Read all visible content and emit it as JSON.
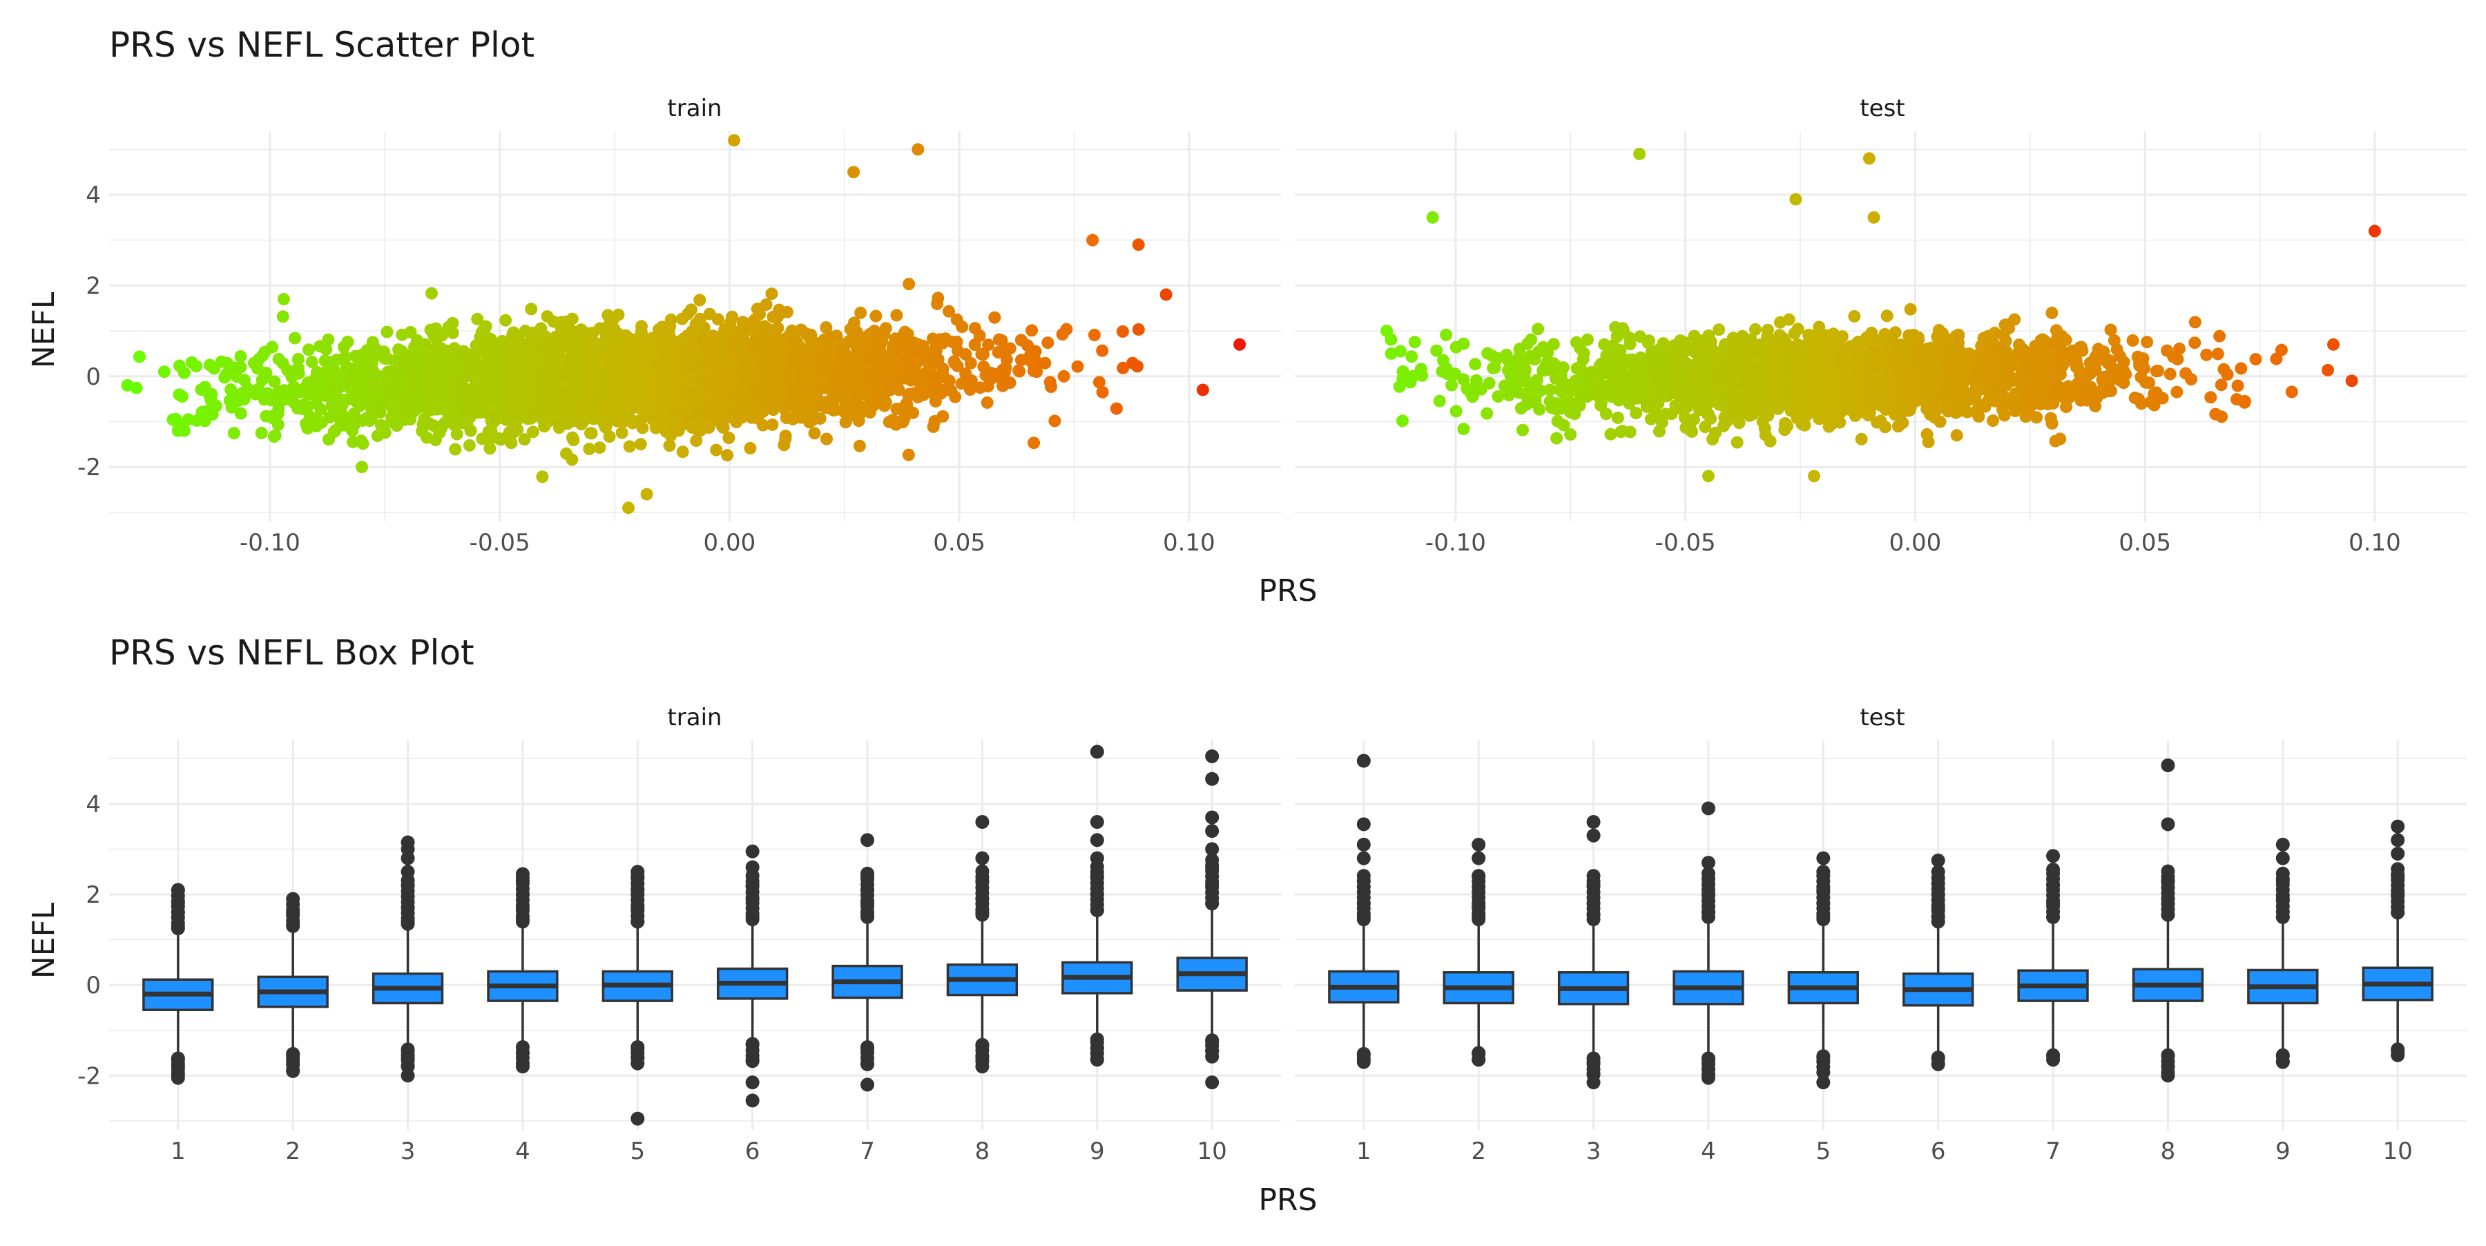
{
  "colors": {
    "grid": "#ebebeb",
    "text": "#4d4d4d",
    "title": "#1a1a1a",
    "box_fill": "#1e90ff",
    "box_line": "#333333",
    "point_low": "#66ff00",
    "point_mid": "#c8b400",
    "point_high": "#ee6a00",
    "point_max": "#ee0000"
  },
  "scatter": {
    "title": "PRS vs NEFL Scatter Plot",
    "xlabel": "PRS",
    "ylabel": "NEFL",
    "facets": [
      "train",
      "test"
    ]
  },
  "box": {
    "title": "PRS vs NEFL Box Plot",
    "xlabel": "PRS",
    "ylabel": "NEFL",
    "facets": [
      "train",
      "test"
    ]
  },
  "chart_data": [
    {
      "type": "scatter",
      "title": "PRS vs NEFL Scatter Plot",
      "xlabel": "PRS",
      "ylabel": "NEFL",
      "facets": [
        "train",
        "test"
      ],
      "xlim": [
        -0.135,
        0.12
      ],
      "ylim": [
        -3.2,
        5.4
      ],
      "x_ticks": [
        -0.1,
        -0.05,
        0.0,
        0.05,
        0.1
      ],
      "x_tick_labels": [
        "-0.10",
        "-0.05",
        "0.00",
        "0.05",
        "0.10"
      ],
      "y_ticks": [
        -2,
        0,
        2,
        4
      ],
      "y_tick_labels": [
        "-2",
        "0",
        "2",
        "4"
      ],
      "grid": true,
      "color_by": "PRS",
      "color_scale": [
        "#66ff00",
        "#c8b400",
        "#ee6a00",
        "#ee0000"
      ],
      "panels": [
        {
          "facet": "train",
          "x_range": [
            -0.13,
            0.11
          ],
          "core_cloud_y": [
            -1.0,
            1.0
          ],
          "notable_points": [
            {
              "x": -0.131,
              "y": -0.2
            },
            {
              "x": -0.123,
              "y": 0.1
            },
            {
              "x": -0.12,
              "y": -1.2
            },
            {
              "x": -0.097,
              "y": 1.7
            },
            {
              "x": -0.08,
              "y": -2.0
            },
            {
              "x": -0.022,
              "y": -2.9
            },
            {
              "x": -0.018,
              "y": -2.6
            },
            {
              "x": 0.001,
              "y": 5.2
            },
            {
              "x": 0.027,
              "y": 4.5
            },
            {
              "x": 0.041,
              "y": 5.0
            },
            {
              "x": 0.079,
              "y": 3.0
            },
            {
              "x": 0.089,
              "y": 2.9
            },
            {
              "x": 0.095,
              "y": 1.8
            },
            {
              "x": 0.111,
              "y": 0.7
            },
            {
              "x": 0.103,
              "y": -0.3
            }
          ]
        },
        {
          "facet": "test",
          "x_range": [
            -0.115,
            0.1
          ],
          "core_cloud_y": [
            -0.9,
            0.9
          ],
          "notable_points": [
            {
              "x": -0.115,
              "y": 1.0
            },
            {
              "x": -0.114,
              "y": 0.5
            },
            {
              "x": -0.105,
              "y": 3.5
            },
            {
              "x": -0.06,
              "y": 4.9
            },
            {
              "x": -0.026,
              "y": 3.9
            },
            {
              "x": -0.01,
              "y": 4.8
            },
            {
              "x": -0.009,
              "y": 3.5
            },
            {
              "x": -0.045,
              "y": -2.2
            },
            {
              "x": -0.022,
              "y": -2.2
            },
            {
              "x": 0.1,
              "y": 3.2
            },
            {
              "x": 0.095,
              "y": -0.1
            },
            {
              "x": 0.091,
              "y": 0.7
            }
          ]
        }
      ]
    },
    {
      "type": "box",
      "title": "PRS vs NEFL Box Plot",
      "xlabel": "PRS",
      "ylabel": "NEFL",
      "facets": [
        "train",
        "test"
      ],
      "categories": [
        "1",
        "2",
        "3",
        "4",
        "5",
        "6",
        "7",
        "8",
        "9",
        "10"
      ],
      "ylim": [
        -3.2,
        5.4
      ],
      "y_ticks": [
        -2,
        0,
        2,
        4
      ],
      "y_tick_labels": [
        "-2",
        "0",
        "2",
        "4"
      ],
      "grid": true,
      "panels": [
        {
          "facet": "train",
          "boxes": [
            {
              "category": "1",
              "q1": -0.55,
              "median": -0.2,
              "q3": 0.12,
              "whisker_low": -1.5,
              "whisker_high": 1.1,
              "outliers": [
                -2.05,
                -1.95,
                -1.8,
                -1.65,
                1.3,
                1.6,
                1.8,
                2.1
              ]
            },
            {
              "category": "2",
              "q1": -0.48,
              "median": -0.15,
              "q3": 0.18,
              "whisker_low": -1.4,
              "whisker_high": 1.15,
              "outliers": [
                -1.9,
                -1.7,
                -1.55,
                1.35,
                1.6,
                1.9
              ]
            },
            {
              "category": "3",
              "q1": -0.4,
              "median": -0.07,
              "q3": 0.25,
              "whisker_low": -1.3,
              "whisker_high": 1.2,
              "outliers": [
                -2.0,
                -1.8,
                -1.6,
                -1.45,
                1.4,
                1.7,
                2.2,
                2.5,
                2.8,
                3.0,
                3.15
              ]
            },
            {
              "category": "4",
              "q1": -0.35,
              "median": -0.02,
              "q3": 0.3,
              "whisker_low": -1.25,
              "whisker_high": 1.25,
              "outliers": [
                -1.8,
                -1.5,
                1.45,
                1.7,
                2.0,
                2.3,
                2.45
              ]
            },
            {
              "category": "5",
              "q1": -0.35,
              "median": 0.0,
              "q3": 0.3,
              "whisker_low": -1.25,
              "whisker_high": 1.25,
              "outliers": [
                -2.95,
                -1.6,
                -1.4,
                1.4,
                1.7,
                2.1,
                2.4,
                2.5
              ]
            },
            {
              "category": "6",
              "q1": -0.3,
              "median": 0.04,
              "q3": 0.36,
              "whisker_low": -1.2,
              "whisker_high": 1.3,
              "outliers": [
                -2.55,
                -2.15,
                -1.65,
                -1.3,
                1.5,
                1.9,
                2.2,
                2.6,
                2.95
              ]
            },
            {
              "category": "7",
              "q1": -0.28,
              "median": 0.07,
              "q3": 0.42,
              "whisker_low": -1.25,
              "whisker_high": 1.35,
              "outliers": [
                -2.2,
                -1.75,
                -1.4,
                1.55,
                1.8,
                2.1,
                2.4,
                3.2
              ]
            },
            {
              "category": "8",
              "q1": -0.22,
              "median": 0.12,
              "q3": 0.45,
              "whisker_low": -1.2,
              "whisker_high": 1.4,
              "outliers": [
                -1.8,
                -1.6,
                -1.35,
                1.6,
                1.9,
                2.3,
                2.8,
                3.6
              ]
            },
            {
              "category": "9",
              "q1": -0.18,
              "median": 0.17,
              "q3": 0.5,
              "whisker_low": -1.15,
              "whisker_high": 1.5,
              "outliers": [
                -1.65,
                -1.4,
                -1.2,
                1.65,
                2.0,
                2.4,
                2.8,
                3.2,
                3.6,
                5.15
              ]
            },
            {
              "category": "10",
              "q1": -0.12,
              "median": 0.25,
              "q3": 0.6,
              "whisker_low": -1.1,
              "whisker_high": 1.65,
              "outliers": [
                -2.15,
                -1.45,
                -1.25,
                1.8,
                2.2,
                2.6,
                3.0,
                3.4,
                3.7,
                4.55,
                5.05
              ]
            }
          ]
        },
        {
          "facet": "test",
          "boxes": [
            {
              "category": "1",
              "q1": -0.38,
              "median": -0.05,
              "q3": 0.3,
              "whisker_low": -1.4,
              "whisker_high": 1.3,
              "outliers": [
                -1.7,
                -1.55,
                1.5,
                1.8,
                2.3,
                2.8,
                3.1,
                3.55,
                4.95
              ]
            },
            {
              "category": "2",
              "q1": -0.4,
              "median": -0.06,
              "q3": 0.28,
              "whisker_low": -1.4,
              "whisker_high": 1.3,
              "outliers": [
                -1.65,
                -1.5,
                1.5,
                1.75,
                2.4,
                2.8,
                3.1
              ]
            },
            {
              "category": "3",
              "q1": -0.42,
              "median": -0.08,
              "q3": 0.28,
              "whisker_low": -1.5,
              "whisker_high": 1.3,
              "outliers": [
                -2.15,
                -1.95,
                -1.7,
                1.55,
                1.8,
                2.2,
                3.3,
                3.6
              ]
            },
            {
              "category": "4",
              "q1": -0.42,
              "median": -0.06,
              "q3": 0.3,
              "whisker_low": -1.5,
              "whisker_high": 1.35,
              "outliers": [
                -2.05,
                -1.85,
                -1.65,
                1.6,
                2.0,
                2.7,
                3.9
              ]
            },
            {
              "category": "5",
              "q1": -0.4,
              "median": -0.06,
              "q3": 0.28,
              "whisker_low": -1.45,
              "whisker_high": 1.3,
              "outliers": [
                -2.15,
                -1.6,
                1.5,
                1.8,
                2.1,
                2.5,
                2.8
              ]
            },
            {
              "category": "6",
              "q1": -0.45,
              "median": -0.1,
              "q3": 0.25,
              "whisker_low": -1.5,
              "whisker_high": 1.25,
              "outliers": [
                -1.75,
                -1.6,
                1.5,
                1.7,
                2.0,
                2.5,
                2.75
              ]
            },
            {
              "category": "7",
              "q1": -0.35,
              "median": -0.02,
              "q3": 0.32,
              "whisker_low": -1.45,
              "whisker_high": 1.35,
              "outliers": [
                -1.65,
                -1.55,
                1.5,
                1.8,
                2.2,
                2.55,
                2.85
              ]
            },
            {
              "category": "8",
              "q1": -0.35,
              "median": 0.0,
              "q3": 0.35,
              "whisker_low": -1.45,
              "whisker_high": 1.4,
              "outliers": [
                -2.0,
                -1.8,
                -1.55,
                1.55,
                1.8,
                2.3,
                3.55,
                4.85
              ]
            },
            {
              "category": "9",
              "q1": -0.4,
              "median": -0.04,
              "q3": 0.33,
              "whisker_low": -1.45,
              "whisker_high": 1.35,
              "outliers": [
                -1.7,
                -1.55,
                1.5,
                1.9,
                2.3,
                2.8,
                3.1
              ]
            },
            {
              "category": "10",
              "q1": -0.33,
              "median": 0.02,
              "q3": 0.38,
              "whisker_low": -1.3,
              "whisker_high": 1.45,
              "outliers": [
                -1.55,
                -1.45,
                1.6,
                2.0,
                2.4,
                2.9,
                3.2,
                3.5
              ]
            }
          ]
        }
      ]
    }
  ]
}
